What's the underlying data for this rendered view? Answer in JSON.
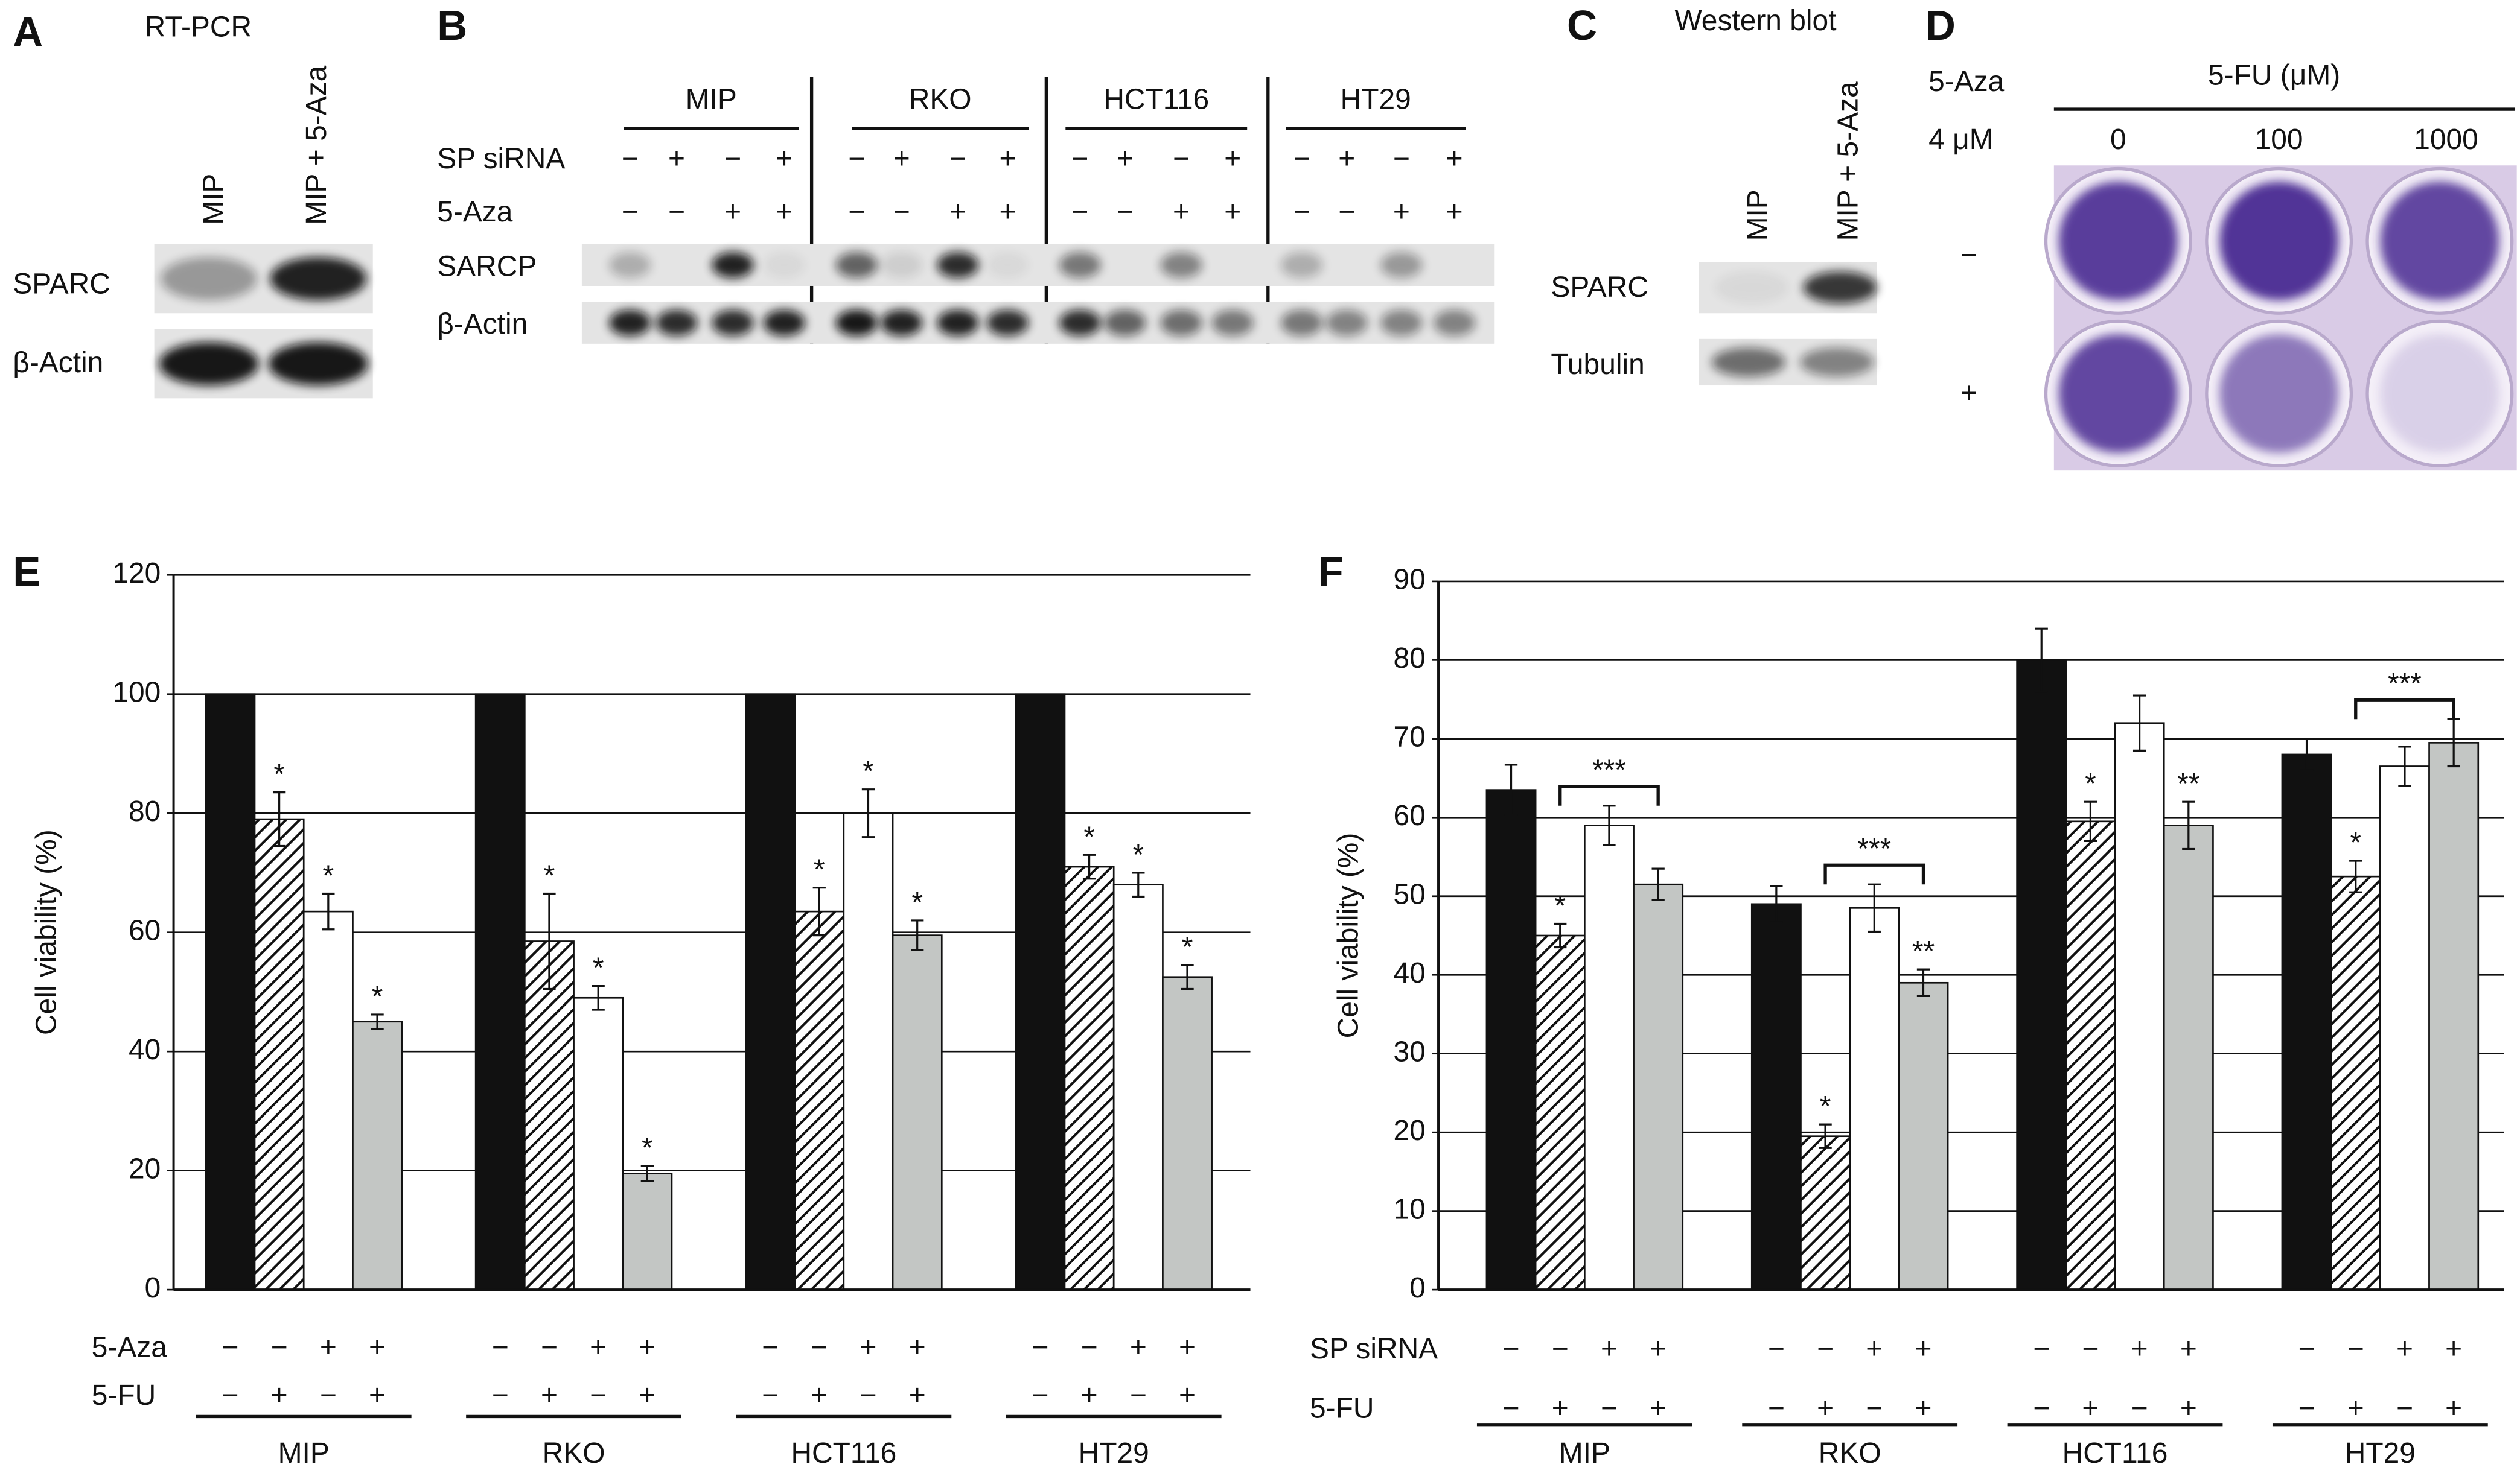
{
  "blots": {
    "A": {
      "letter": "A",
      "title": "RT-PCR",
      "lanes": [
        "MIP",
        "MIP + 5-Aza"
      ],
      "rows": [
        "SPARC",
        "β-Actin"
      ]
    },
    "B": {
      "letter": "B",
      "groups": [
        "MIP",
        "RKO",
        "HCT116",
        "HT29"
      ],
      "condition_rows": [
        {
          "label": "SP siRNA",
          "signs": [
            [
              "−",
              "+",
              "−",
              "+"
            ],
            [
              "−",
              "+",
              "−",
              "+"
            ],
            [
              "−",
              "+",
              "−",
              "+"
            ],
            [
              "−",
              "+",
              "−",
              "+"
            ]
          ]
        },
        {
          "label": "5-Aza",
          "signs": [
            [
              "−",
              "−",
              "+",
              "+"
            ],
            [
              "−",
              "−",
              "+",
              "+"
            ],
            [
              "−",
              "−",
              "+",
              "+"
            ],
            [
              "−",
              "−",
              "+",
              "+"
            ]
          ]
        }
      ],
      "rows": [
        "SARCP",
        "β-Actin"
      ]
    },
    "C": {
      "letter": "C",
      "title": "Western blot",
      "lanes": [
        "MIP",
        "MIP + 5-Aza"
      ],
      "rows": [
        "SPARC",
        "Tubulin"
      ]
    },
    "D": {
      "letter": "D",
      "treatment": "5-Aza",
      "dose": "4 μM",
      "title": "5-FU (μM)",
      "doses": [
        "0",
        "100",
        "1000"
      ],
      "rows": [
        "−",
        "+"
      ]
    }
  },
  "chart_data": [
    {
      "type": "bar",
      "panel_label": "E",
      "y_label": "Cell viability (%)",
      "categories": [
        "MIP",
        "RKO",
        "HCT116",
        "HT29"
      ],
      "ylim": [
        0,
        120
      ],
      "yticks": [
        0,
        20,
        40,
        60,
        80,
        100,
        120
      ],
      "grid": true,
      "condition_rows": [
        {
          "label": "5-Aza",
          "signs": [
            [
              "−",
              "−",
              "+",
              "+"
            ],
            [
              "−",
              "−",
              "+",
              "+"
            ],
            [
              "−",
              "−",
              "+",
              "+"
            ],
            [
              "−",
              "−",
              "+",
              "+"
            ]
          ]
        },
        {
          "label": "5-FU",
          "signs": [
            [
              "−",
              "+",
              "−",
              "+"
            ],
            [
              "−",
              "+",
              "−",
              "+"
            ],
            [
              "−",
              "+",
              "−",
              "+"
            ],
            [
              "−",
              "+",
              "−",
              "+"
            ]
          ]
        }
      ],
      "series": [
        {
          "color": "#111111",
          "values": [
            100,
            100,
            100,
            100
          ]
        },
        {
          "color": "#ffffff",
          "hatch": true,
          "values": [
            79,
            58.5,
            63.5,
            71
          ],
          "errors": [
            4.5,
            8,
            4,
            2
          ],
          "annotations": [
            "*",
            "*",
            "*",
            "*"
          ]
        },
        {
          "color": "#ffffff",
          "values": [
            63.5,
            49,
            80,
            68
          ],
          "errors": [
            3,
            2,
            4,
            2
          ],
          "annotations": [
            "*",
            "*",
            "*",
            "*"
          ]
        },
        {
          "color": "#c3c6c4",
          "values": [
            45,
            19.5,
            59.5,
            52.5
          ],
          "errors": [
            1.2,
            1.3,
            2.5,
            2
          ],
          "annotations": [
            "*",
            "*",
            "*",
            "*"
          ]
        }
      ]
    },
    {
      "type": "bar",
      "panel_label": "F",
      "y_label": "Cell viability (%)",
      "categories": [
        "MIP",
        "RKO",
        "HCT116",
        "HT29"
      ],
      "ylim": [
        0,
        90
      ],
      "yticks": [
        0,
        10,
        20,
        30,
        40,
        50,
        60,
        70,
        80,
        90
      ],
      "grid": true,
      "condition_rows": [
        {
          "label": "SP siRNA",
          "signs": [
            [
              "−",
              "−",
              "+",
              "+"
            ],
            [
              "−",
              "−",
              "+",
              "+"
            ],
            [
              "−",
              "−",
              "+",
              "+"
            ],
            [
              "−",
              "−",
              "+",
              "+"
            ]
          ]
        },
        {
          "label": "5-FU",
          "signs": [
            [
              "−",
              "+",
              "−",
              "+"
            ],
            [
              "−",
              "+",
              "−",
              "+"
            ],
            [
              "−",
              "+",
              "−",
              "+"
            ],
            [
              "−",
              "+",
              "−",
              "+"
            ]
          ]
        }
      ],
      "brackets": [
        "***",
        "***",
        null,
        "***"
      ],
      "series": [
        {
          "color": "#111111",
          "values": [
            63.5,
            49,
            80,
            68
          ],
          "errors": [
            3.2,
            2.3,
            4,
            2
          ]
        },
        {
          "color": "#ffffff",
          "hatch": true,
          "values": [
            45,
            19.5,
            59.5,
            52.5
          ],
          "errors": [
            1.5,
            1.5,
            2.5,
            2
          ],
          "annotations": [
            "*",
            "*",
            "*",
            "*"
          ]
        },
        {
          "color": "#ffffff",
          "values": [
            59,
            48.5,
            72,
            66.5
          ],
          "errors": [
            2.5,
            3,
            3.5,
            2.5
          ]
        },
        {
          "color": "#c3c6c4",
          "values": [
            51.5,
            39,
            59,
            69.5
          ],
          "errors": [
            2,
            1.7,
            3,
            3
          ],
          "annotations": [
            null,
            "**",
            "**",
            null
          ]
        }
      ]
    }
  ]
}
